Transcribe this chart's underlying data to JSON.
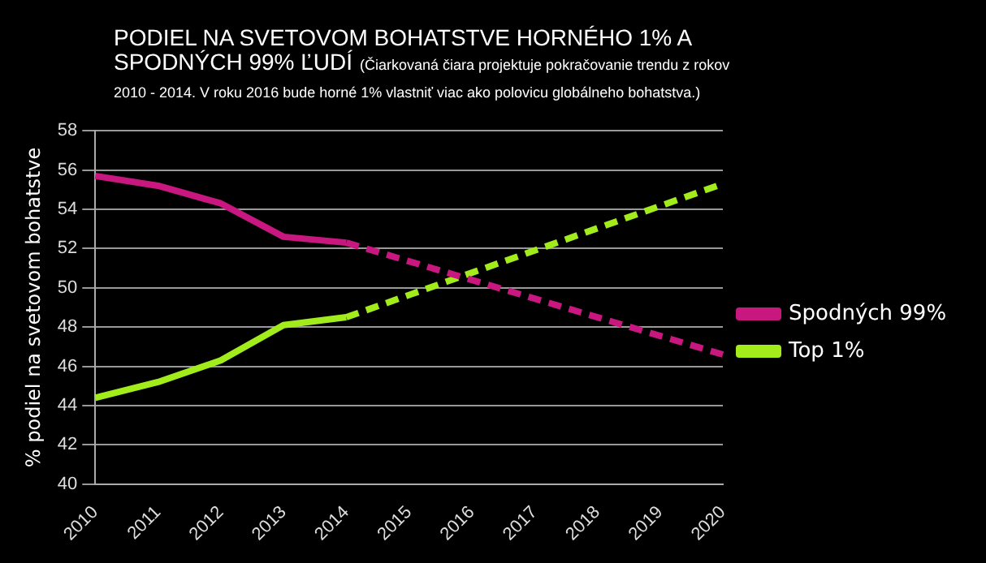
{
  "chart_data": {
    "type": "line",
    "title": "PODIEL NA SVETOVOM BOHATSTVE HORNÉHO 1% A SPODNÝCH 99% ĽUDÍ",
    "subtitle": "(Čiarkovaná čiara projektuje pokračovanie trendu z rokov 2010 - 2014. V roku 2016 bude horné 1% vlastniť viac ako polovicu globálneho bohatstva.)",
    "ylabel": "% podiel na svetovom bohatstve",
    "categories": [
      "2010",
      "2011",
      "2012",
      "2013",
      "2014",
      "2015",
      "2016",
      "2017",
      "2018",
      "2019",
      "2020"
    ],
    "series": [
      {
        "name": "Spodných 99%",
        "color": "#c8177f",
        "line_style": "solid",
        "values": [
          55.7,
          55.2,
          54.3,
          52.6,
          52.3,
          null,
          null,
          null,
          null,
          null,
          null
        ]
      },
      {
        "name": "Top 1%",
        "color": "#a2ec1c",
        "line_style": "solid",
        "values": [
          44.4,
          45.2,
          46.3,
          48.1,
          48.5,
          null,
          null,
          null,
          null,
          null,
          null
        ]
      },
      {
        "color": "#c8177f",
        "line_style": "dashed",
        "values": [
          null,
          null,
          null,
          null,
          52.3,
          null,
          null,
          null,
          null,
          null,
          46.6
        ]
      },
      {
        "color": "#a2ec1c",
        "line_style": "dashed",
        "values": [
          null,
          null,
          null,
          null,
          48.5,
          null,
          null,
          null,
          null,
          null,
          55.3
        ]
      }
    ],
    "ylim": [
      40,
      58
    ],
    "yticks": [
      40,
      42,
      44,
      46,
      48,
      50,
      52,
      54,
      56,
      58
    ],
    "grid": "y",
    "legend": "right",
    "marker": "none"
  }
}
